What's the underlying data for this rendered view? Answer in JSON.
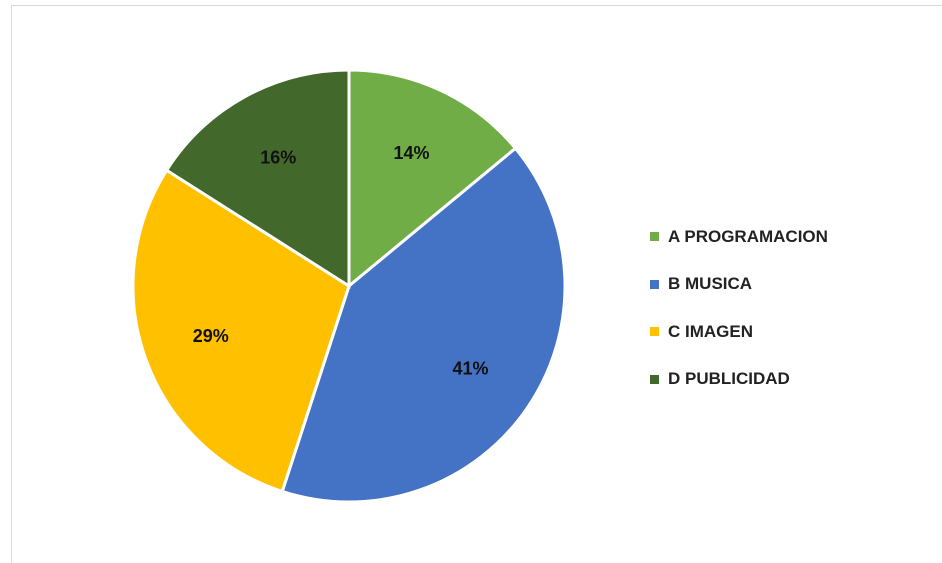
{
  "chart_data": {
    "type": "pie",
    "slices": [
      {
        "name": "A PROGRAMACION",
        "value": 14,
        "label": "14%",
        "color": "#70ad47"
      },
      {
        "name": "B MUSICA",
        "value": 41,
        "label": "41%",
        "color": "#4472c4"
      },
      {
        "name": "C IMAGEN",
        "value": 29,
        "label": "29%",
        "color": "#ffc000"
      },
      {
        "name": "D PUBLICIDAD",
        "value": 16,
        "label": "16%",
        "color": "#43682b"
      }
    ],
    "legend_position": "right"
  }
}
